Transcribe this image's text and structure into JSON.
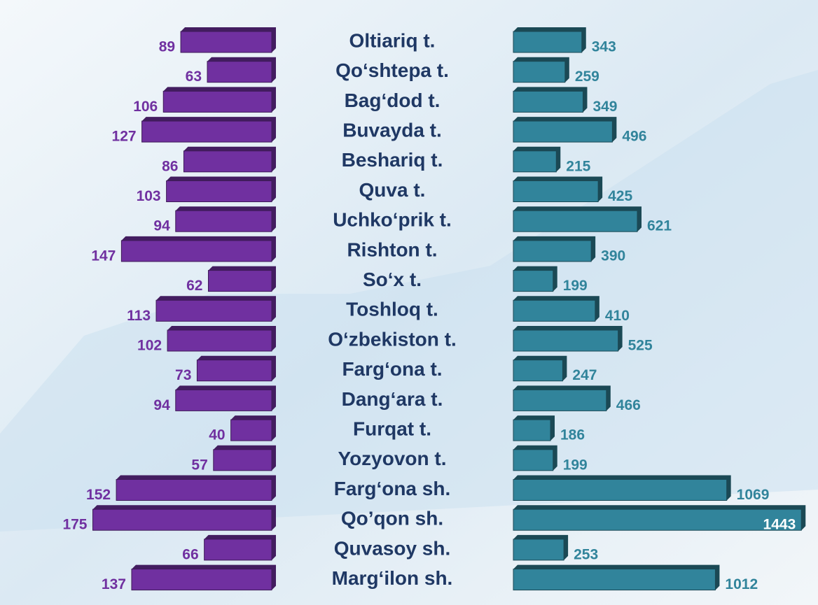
{
  "chart_data": {
    "type": "bar",
    "categories": [
      "Oltiariq t.",
      "Qo‘shtepa t.",
      "Bag‘dod t.",
      "Buvayda t.",
      "Beshariq t.",
      "Quva t.",
      "Uchko‘prik t.",
      "Rishton t.",
      "So‘x t.",
      "Toshloq t.",
      "O‘zbekiston t.",
      "Farg‘ona t.",
      "Dang‘ara t.",
      "Furqat t.",
      "Yozyovon t.",
      "Farg‘ona sh.",
      "Qo’qon sh.",
      "Quvasoy sh.",
      "Marg‘ilon sh."
    ],
    "series": [
      {
        "color": "#7030a0",
        "values": [
          89,
          63,
          106,
          127,
          86,
          103,
          94,
          147,
          62,
          113,
          102,
          73,
          94,
          40,
          57,
          152,
          175,
          66,
          137
        ]
      },
      {
        "color": "#31849b",
        "values": [
          343,
          259,
          349,
          496,
          215,
          425,
          621,
          390,
          199,
          410,
          525,
          247,
          466,
          186,
          199,
          1069,
          1443,
          253,
          1012
        ]
      }
    ]
  }
}
